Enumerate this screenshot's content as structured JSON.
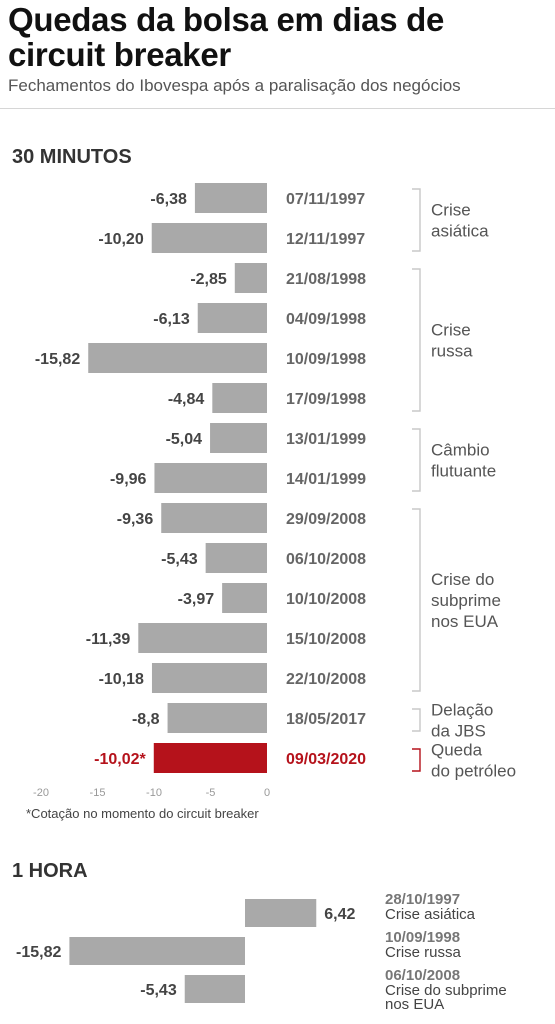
{
  "header": {
    "title": "Quedas da bolsa em dias de circuit breaker",
    "subtitle": "Fechamentos do Ibovespa após a paralisação dos negócios"
  },
  "footnote": "*Cotação no momento do circuit breaker",
  "colors": {
    "bar": "#a9a9a9",
    "highlight": "#b5121b",
    "bracket": "#c8c8c8"
  },
  "chart_data": [
    {
      "type": "bar",
      "orientation": "horizontal",
      "title": "30 MINUTOS",
      "xlim": [
        -20,
        0
      ],
      "xticks": [
        "-20",
        "-15",
        "-10",
        "-5",
        "0"
      ],
      "categories": [
        "07/11/1997",
        "12/11/1997",
        "21/08/1998",
        "04/09/1998",
        "10/09/1998",
        "17/09/1998",
        "13/01/1999",
        "14/01/1999",
        "29/09/2008",
        "06/10/2008",
        "10/10/2008",
        "15/10/2008",
        "22/10/2008",
        "18/05/2017",
        "09/03/2020"
      ],
      "values": [
        -6.38,
        -10.2,
        -2.85,
        -6.13,
        -15.82,
        -4.84,
        -5.04,
        -9.96,
        -9.36,
        -5.43,
        -3.97,
        -11.39,
        -10.18,
        -8.8,
        -10.02
      ],
      "value_labels": [
        "-6,38",
        "-10,20",
        "-2,85",
        "-6,13",
        "-15,82",
        "-4,84",
        "-5,04",
        "-9,96",
        "-9,36",
        "-5,43",
        "-3,97",
        "-11,39",
        "-10,18",
        "-8,8",
        "-10,02*"
      ],
      "highlight_index": 14,
      "groups": [
        {
          "lines": [
            "Crise",
            "asiática"
          ],
          "start": 0,
          "end": 1
        },
        {
          "lines": [
            "Crise",
            "russa"
          ],
          "start": 2,
          "end": 5
        },
        {
          "lines": [
            "Câmbio",
            "flutuante"
          ],
          "start": 6,
          "end": 7
        },
        {
          "lines": [
            "Crise do",
            "subprime",
            "nos EUA"
          ],
          "start": 8,
          "end": 12
        },
        {
          "lines": [
            "Delação",
            "da JBS"
          ],
          "start": 13,
          "end": 13
        },
        {
          "lines": [
            "Queda",
            "do petróleo"
          ],
          "start": 14,
          "end": 14
        }
      ]
    },
    {
      "type": "bar",
      "orientation": "horizontal",
      "title": "1 HORA",
      "categories": [
        "28/10/1997",
        "10/09/1998",
        "06/10/2008"
      ],
      "descriptions": [
        [
          "Crise asiática"
        ],
        [
          "Crise russa"
        ],
        [
          "Crise do subprime",
          "nos EUA"
        ]
      ],
      "values": [
        6.42,
        -15.82,
        -5.43
      ],
      "value_labels": [
        "6,42",
        "-15,82",
        "-5,43"
      ]
    }
  ]
}
